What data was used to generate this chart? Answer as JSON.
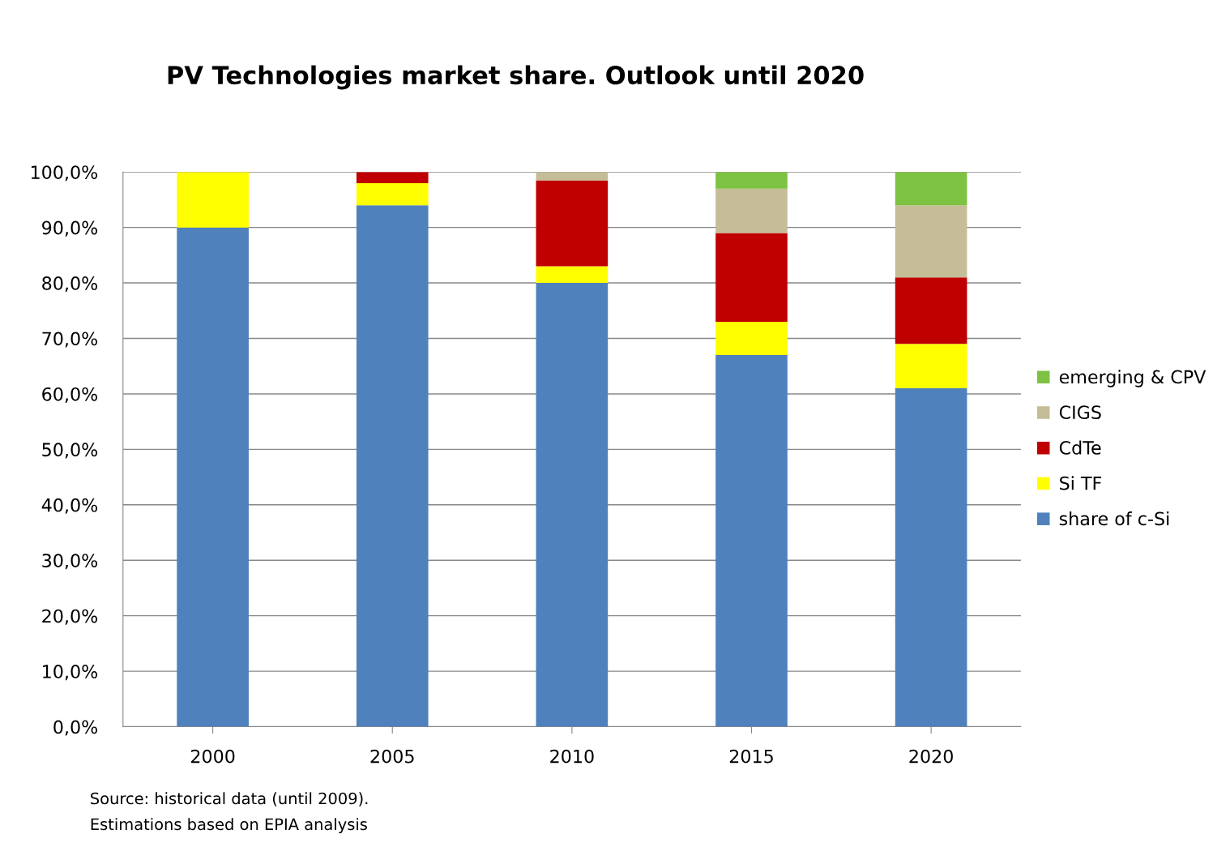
{
  "chart_data": {
    "type": "bar",
    "title": "PV Technologies market share. Outlook until 2020",
    "categories": [
      "2000",
      "2005",
      "2010",
      "2015",
      "2020"
    ],
    "stacked": true,
    "series": [
      {
        "name": "share of c-Si",
        "color": "#4f81bd",
        "values": [
          90,
          94,
          80,
          67,
          61
        ]
      },
      {
        "name": "Si TF",
        "color": "#ffff00",
        "values": [
          10,
          4,
          3,
          6,
          8
        ]
      },
      {
        "name": "CdTe",
        "color": "#c00000",
        "values": [
          0,
          2,
          15.5,
          16,
          12
        ]
      },
      {
        "name": "CIGS",
        "color": "#c4bd97",
        "values": [
          0,
          0,
          1.5,
          8,
          13
        ]
      },
      {
        "name": "emerging & CPV",
        "color": "#7dc242",
        "values": [
          0,
          0,
          0,
          3,
          6
        ]
      }
    ],
    "ylim": [
      0,
      100
    ],
    "yticks": [
      {
        "value": 0,
        "label": "0,0%"
      },
      {
        "value": 10,
        "label": "10,0%"
      },
      {
        "value": 20,
        "label": "20,0%"
      },
      {
        "value": 30,
        "label": "30,0%"
      },
      {
        "value": 40,
        "label": "40,0%"
      },
      {
        "value": 50,
        "label": "50,0%"
      },
      {
        "value": 60,
        "label": "60,0%"
      },
      {
        "value": 70,
        "label": "70,0%"
      },
      {
        "value": 80,
        "label": "80,0%"
      },
      {
        "value": 90,
        "label": "90,0%"
      },
      {
        "value": 100,
        "label": "100,0%"
      }
    ],
    "grid": "y",
    "legend": "right",
    "annotations": [
      "Source: historical data (until 2009).",
      "Estimations based on EPIA analysis"
    ]
  }
}
